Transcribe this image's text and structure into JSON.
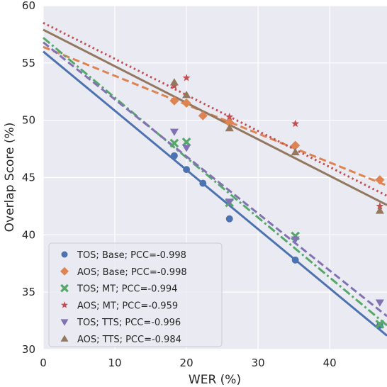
{
  "chart_data": {
    "type": "scatter",
    "xlabel": "WER (%)",
    "ylabel": "Overlap Score (%)",
    "xlim": [
      0,
      48
    ],
    "ylim": [
      30,
      60
    ],
    "xticks": [
      0,
      10,
      20,
      30,
      40
    ],
    "yticks": [
      30,
      35,
      40,
      45,
      50,
      55,
      60
    ],
    "grid": true,
    "legend_position": "bottom-left",
    "series": [
      {
        "name": "TOS; Base; PCC=-0.998",
        "color": "#4c72b0",
        "marker": "circle",
        "line_style": "solid",
        "points": [
          [
            18.3,
            46.9
          ],
          [
            20.0,
            45.7
          ],
          [
            22.3,
            44.5
          ],
          [
            26.0,
            41.4
          ],
          [
            35.2,
            37.8
          ],
          [
            47.0,
            32.1
          ]
        ],
        "fit": [
          [
            0,
            56.0
          ],
          [
            48,
            31.2
          ]
        ]
      },
      {
        "name": "AOS; Base; PCC=-0.998",
        "color": "#dd8452",
        "marker": "diamond",
        "line_style": "dashed",
        "points": [
          [
            18.3,
            51.7
          ],
          [
            20.0,
            51.5
          ],
          [
            22.3,
            50.4
          ],
          [
            26.0,
            49.8
          ],
          [
            35.2,
            47.8
          ],
          [
            47.0,
            44.8
          ]
        ],
        "fit": [
          [
            0,
            56.4
          ],
          [
            48,
            44.3
          ]
        ]
      },
      {
        "name": "TOS; MT; PCC=-0.994",
        "color": "#55a868",
        "marker": "x",
        "line_style": "dashdot",
        "points": [
          [
            18.3,
            48.0
          ],
          [
            20.0,
            48.1
          ],
          [
            26.0,
            42.8
          ],
          [
            35.2,
            39.9
          ],
          [
            47.0,
            32.2
          ]
        ],
        "fit": [
          [
            0,
            57.2
          ],
          [
            48,
            32.1
          ]
        ]
      },
      {
        "name": "AOS; MT; PCC=-0.959",
        "color": "#c44e52",
        "marker": "star",
        "line_style": "dotted",
        "points": [
          [
            18.3,
            53.0
          ],
          [
            20.0,
            53.7
          ],
          [
            26.0,
            50.3
          ],
          [
            35.2,
            49.7
          ],
          [
            47.0,
            42.5
          ]
        ],
        "fit": [
          [
            0,
            58.5
          ],
          [
            48,
            43.4
          ]
        ]
      },
      {
        "name": "TOS; TTS; PCC=-0.996",
        "color": "#8172b3",
        "marker": "triangle-down",
        "line_style": "dashed",
        "points": [
          [
            18.3,
            49.0
          ],
          [
            20.0,
            47.6
          ],
          [
            26.0,
            42.9
          ],
          [
            35.2,
            39.6
          ],
          [
            47.0,
            34.1
          ]
        ],
        "fit": [
          [
            0,
            56.8
          ],
          [
            48,
            32.9
          ]
        ]
      },
      {
        "name": "AOS; TTS; PCC=-0.984",
        "color": "#937860",
        "marker": "triangle-up",
        "line_style": "solid",
        "points": [
          [
            18.3,
            53.3
          ],
          [
            20.0,
            52.2
          ],
          [
            26.0,
            49.3
          ],
          [
            35.2,
            47.2
          ],
          [
            47.0,
            42.1
          ]
        ],
        "fit": [
          [
            0,
            57.9
          ],
          [
            48,
            42.6
          ]
        ]
      }
    ]
  }
}
